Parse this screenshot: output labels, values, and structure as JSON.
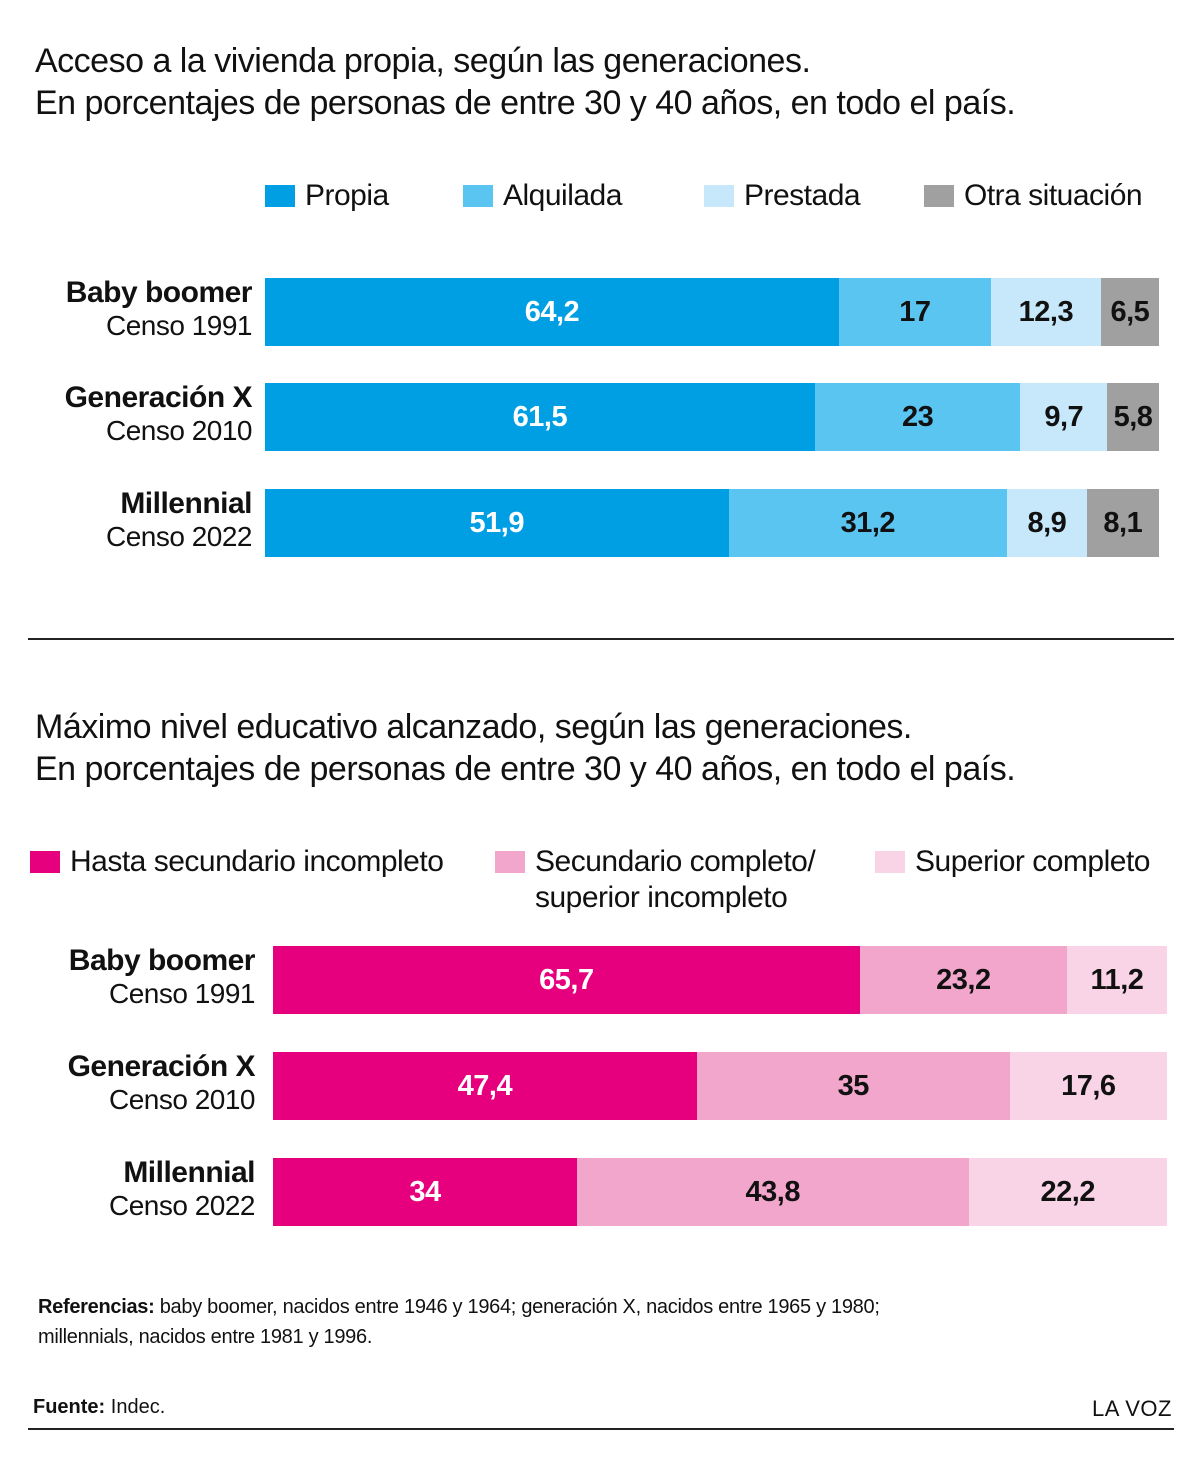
{
  "chart_data": [
    {
      "type": "bar",
      "stacked": true,
      "orientation": "horizontal",
      "title": "Acceso a la vivienda propia, según las generaciones.",
      "subtitle": "En porcentajes de personas de entre 30 y 40 años, en todo el país.",
      "categories": [
        {
          "generation": "Baby boomer",
          "census": "Censo 1991"
        },
        {
          "generation": "Generación X",
          "census": "Censo 2010"
        },
        {
          "generation": "Millennial",
          "census": "Censo 2022"
        }
      ],
      "series": [
        {
          "name": "Propia",
          "color": "#009fe3",
          "text_color": "#ffffff",
          "values": [
            64.2,
            61.5,
            51.9
          ],
          "labels": [
            "64,2",
            "61,5",
            "51,9"
          ]
        },
        {
          "name": "Alquilada",
          "color": "#5bc5f2",
          "text_color": "#111111",
          "values": [
            17,
            23,
            31.2
          ],
          "labels": [
            "17",
            "23",
            "31,2"
          ]
        },
        {
          "name": "Prestada",
          "color": "#c6e8fa",
          "text_color": "#111111",
          "values": [
            12.3,
            9.7,
            8.9
          ],
          "labels": [
            "12,3",
            "9,7",
            "8,9"
          ]
        },
        {
          "name": "Otra situación",
          "color": "#a0a0a0",
          "text_color": "#111111",
          "values": [
            6.5,
            5.8,
            8.1
          ],
          "labels": [
            "6,5",
            "5,8",
            "8,1"
          ]
        }
      ],
      "legend_position": "top-right",
      "grid": false
    },
    {
      "type": "bar",
      "stacked": true,
      "orientation": "horizontal",
      "title": "Máximo nivel educativo alcanzado, según  las generaciones.",
      "subtitle": "En porcentajes de personas de entre 30 y 40 años, en todo el país.",
      "categories": [
        {
          "generation": "Baby boomer",
          "census": "Censo 1991"
        },
        {
          "generation": "Generación X",
          "census": "Censo 2010"
        },
        {
          "generation": "Millennial",
          "census": "Censo 2022"
        }
      ],
      "series": [
        {
          "name": "Hasta secundario incompleto",
          "name_lines": [
            "Hasta secundario incompleto"
          ],
          "color": "#e6007e",
          "text_color": "#ffffff",
          "values": [
            65.7,
            47.4,
            34
          ],
          "labels": [
            "65,7",
            "47,4",
            "34"
          ]
        },
        {
          "name": "Secundario completo/ superior incompleto",
          "name_lines": [
            "Secundario completo/",
            "superior incompleto"
          ],
          "color": "#f3a6cc",
          "text_color": "#111111",
          "values": [
            23.2,
            35,
            43.8
          ],
          "labels": [
            "23,2",
            "35",
            "43,8"
          ]
        },
        {
          "name": "Superior completo",
          "name_lines": [
            "Superior completo"
          ],
          "color": "#f9d4e6",
          "text_color": "#111111",
          "values": [
            11.2,
            17.6,
            22.2
          ],
          "labels": [
            "11,2",
            "17,6",
            "22,2"
          ]
        }
      ],
      "legend_position": "top",
      "grid": false
    }
  ],
  "footer": {
    "references_label": "Referencias:",
    "references_text_1": " baby boomer, nacidos entre 1946 y 1964; generación X, nacidos entre 1965 y 1980;",
    "references_text_2": "millennials, nacidos entre 1981 y 1996.",
    "source_label": "Fuente:",
    "source_text": " Indec.",
    "brand": "LA VOZ"
  }
}
